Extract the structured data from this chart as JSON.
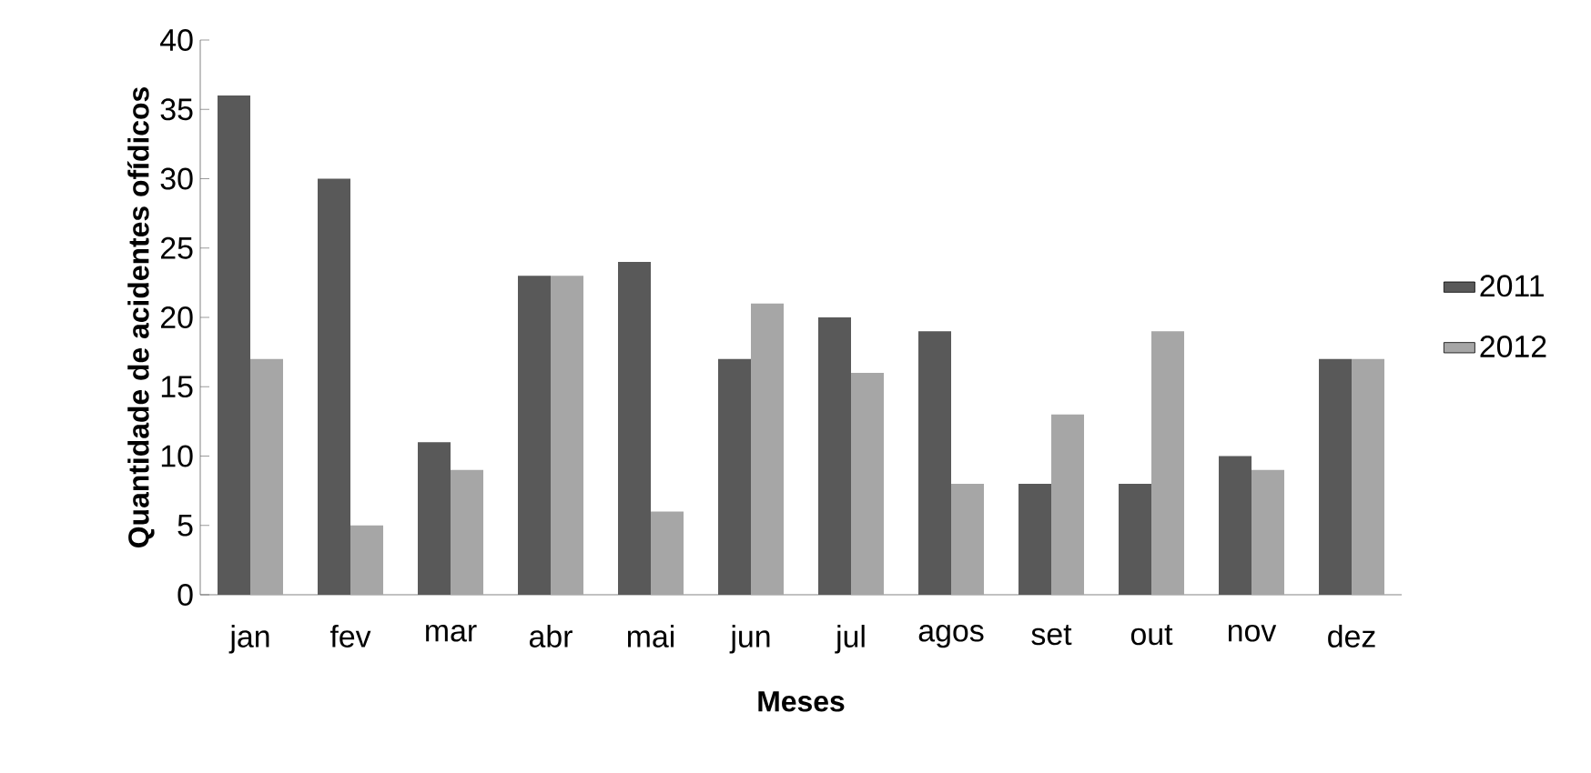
{
  "chart_data": {
    "type": "bar",
    "xlabel": "Meses",
    "ylabel": "Quantidade de acidentes ofídicos",
    "categories": [
      "jan",
      "fev",
      "mar",
      "abr",
      "mai",
      "jun",
      "jul",
      "agos",
      "set",
      "out",
      "nov",
      "dez"
    ],
    "series": [
      {
        "name": "2011",
        "color": "#595959",
        "values": [
          36,
          30,
          11,
          23,
          24,
          17,
          20,
          19,
          8,
          8,
          10,
          17
        ]
      },
      {
        "name": "2012",
        "color": "#a6a6a6",
        "values": [
          17,
          5,
          9,
          23,
          6,
          21,
          16,
          8,
          13,
          19,
          9,
          17
        ]
      }
    ],
    "ylim": [
      0,
      40
    ],
    "yticks": [
      0,
      5,
      10,
      15,
      20,
      25,
      30,
      35,
      40
    ],
    "grid": false,
    "legend": "right"
  }
}
